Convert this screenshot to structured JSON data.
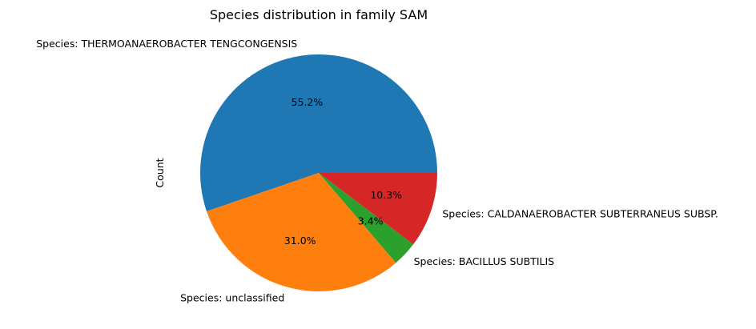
{
  "chart_data": {
    "type": "pie",
    "title": "Species distribution in family SAM",
    "ylabel": "Count",
    "slices": [
      {
        "label": "Species: THERMOANAEROBACTER TENGCONGENSIS",
        "percent": 55.2,
        "pct_label": "55.2%",
        "color": "#1f77b4"
      },
      {
        "label": "Species: unclassified",
        "percent": 31.0,
        "pct_label": "31.0%",
        "color": "#ff7f0e"
      },
      {
        "label": "Species: BACILLUS SUBTILIS",
        "percent": 3.4,
        "pct_label": "3.4%",
        "color": "#2ca02c"
      },
      {
        "label": "Species: CALDANAEROBACTER SUBTERRANEUS SUBSP.",
        "percent": 10.3,
        "pct_label": "10.3%",
        "color": "#d62728"
      }
    ]
  }
}
